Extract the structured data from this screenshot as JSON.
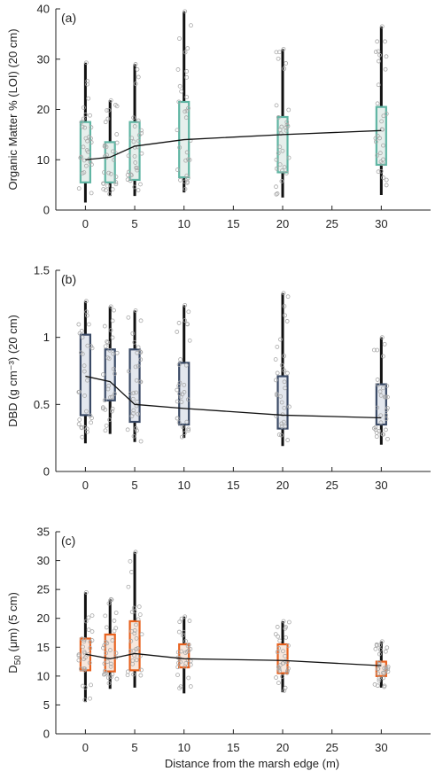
{
  "figure": {
    "xlabel": "Distance from the marsh edge (m)",
    "x_ticks": [
      0,
      5,
      10,
      15,
      20,
      25,
      30
    ],
    "x_range": [
      -3,
      35
    ]
  },
  "chart_data": [
    {
      "type": "box",
      "panel_label": "(a)",
      "ylabel": "Organic Matter % (LOI) (20 cm)",
      "ylim": [
        0,
        40
      ],
      "yticks": [
        0,
        10,
        20,
        30,
        40
      ],
      "box_color": "#5fb5a3",
      "fill_color": "#e6efec",
      "boxes": [
        {
          "x": 0,
          "q1": 5.5,
          "q3": 17.5,
          "whisker_low": 1.5,
          "whisker_high": 29.3
        },
        {
          "x": 2.5,
          "q1": 5.5,
          "q3": 13.5,
          "whisker_low": 2.8,
          "whisker_high": 21.8
        },
        {
          "x": 5,
          "q1": 6.0,
          "q3": 17.5,
          "whisker_low": 2.8,
          "whisker_high": 29.0
        },
        {
          "x": 10,
          "q1": 6.5,
          "q3": 21.5,
          "whisker_low": 3.5,
          "whisker_high": 39.5
        },
        {
          "x": 20,
          "q1": 7.5,
          "q3": 18.5,
          "whisker_low": 2.5,
          "whisker_high": 32.0
        },
        {
          "x": 30,
          "q1": 9.0,
          "q3": 20.5,
          "whisker_low": 3.0,
          "whisker_high": 36.5
        }
      ],
      "mean_line": {
        "x": [
          0,
          2.5,
          5,
          10,
          20,
          30
        ],
        "y": [
          10.0,
          10.5,
          12.7,
          14.0,
          15.0,
          15.8
        ]
      }
    },
    {
      "type": "box",
      "panel_label": "(b)",
      "ylabel": "DBD (g cm⁻³) (20 cm)",
      "ylim": [
        0,
        1.5
      ],
      "yticks": [
        0,
        0.5,
        1,
        1.5
      ],
      "box_color": "#3a4a66",
      "fill_color": "#e3e7ee",
      "boxes": [
        {
          "x": 0,
          "q1": 0.42,
          "q3": 1.02,
          "whisker_low": 0.21,
          "whisker_high": 1.27
        },
        {
          "x": 2.5,
          "q1": 0.53,
          "q3": 0.91,
          "whisker_low": 0.28,
          "whisker_high": 1.23
        },
        {
          "x": 5,
          "q1": 0.37,
          "q3": 0.91,
          "whisker_low": 0.22,
          "whisker_high": 1.2
        },
        {
          "x": 10,
          "q1": 0.35,
          "q3": 0.81,
          "whisker_low": 0.25,
          "whisker_high": 1.24
        },
        {
          "x": 20,
          "q1": 0.32,
          "q3": 0.71,
          "whisker_low": 0.19,
          "whisker_high": 1.33
        },
        {
          "x": 30,
          "q1": 0.35,
          "q3": 0.65,
          "whisker_low": 0.2,
          "whisker_high": 1.0
        }
      ],
      "mean_line": {
        "x": [
          0,
          2.5,
          5,
          10,
          20,
          30
        ],
        "y": [
          0.71,
          0.67,
          0.5,
          0.47,
          0.42,
          0.4
        ]
      }
    },
    {
      "type": "box",
      "panel_label": "(c)",
      "ylabel_main": "D",
      "ylabel_sub": "50",
      "ylabel_rest": " (μm) (5 cm)",
      "ylim": [
        0,
        35
      ],
      "yticks": [
        0,
        5,
        10,
        15,
        20,
        25,
        30,
        35
      ],
      "box_color": "#e8621f",
      "fill_color": "#f7e7dd",
      "boxes": [
        {
          "x": 0,
          "q1": 11.0,
          "q3": 16.5,
          "whisker_low": 5.5,
          "whisker_high": 24.5
        },
        {
          "x": 2.5,
          "q1": 10.8,
          "q3": 17.2,
          "whisker_low": 7.8,
          "whisker_high": 23.3
        },
        {
          "x": 5,
          "q1": 11.0,
          "q3": 19.5,
          "whisker_low": 8.0,
          "whisker_high": 31.5
        },
        {
          "x": 10,
          "q1": 11.5,
          "q3": 15.5,
          "whisker_low": 7.0,
          "whisker_high": 20.3
        },
        {
          "x": 20,
          "q1": 10.5,
          "q3": 15.5,
          "whisker_low": 7.2,
          "whisker_high": 19.5
        },
        {
          "x": 30,
          "q1": 10.0,
          "q3": 12.5,
          "whisker_low": 8.0,
          "whisker_high": 16.0
        }
      ],
      "mean_line": {
        "x": [
          0,
          2.5,
          5,
          10,
          20,
          30
        ],
        "y": [
          13.8,
          13.0,
          13.9,
          13.0,
          12.7,
          11.8
        ]
      }
    }
  ]
}
